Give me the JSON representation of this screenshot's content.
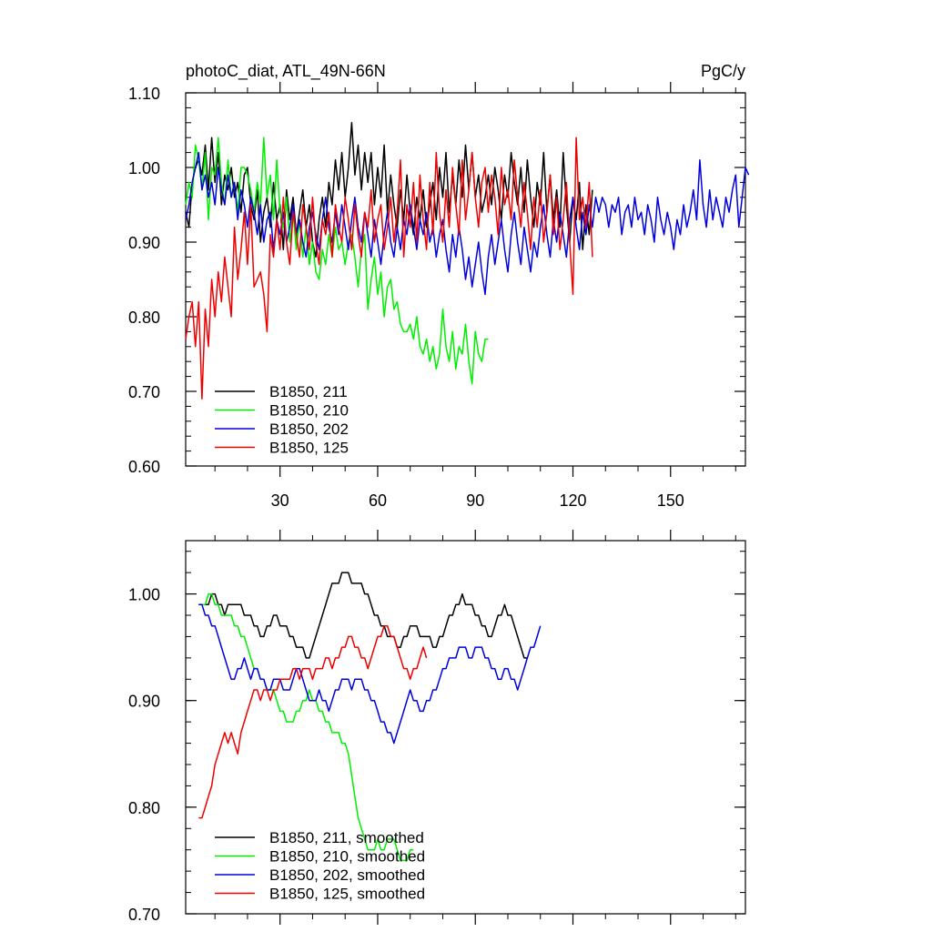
{
  "figure": {
    "title_left": "photoC_diat, ATL_49N-66N",
    "title_right": "PgC/y"
  },
  "colors": {
    "B1850_211": "#000000",
    "B1850_210": "#00ee00",
    "B1850_202": "#0000dd",
    "B1850_125": "#ee0000"
  },
  "chart_data": [
    {
      "type": "line",
      "title": "photoC_diat, ATL_49N-66N",
      "units": "PgC/y",
      "xlabel": "",
      "ylabel": "",
      "xlim": [
        1,
        173
      ],
      "ylim": [
        0.6,
        1.1
      ],
      "x_ticks": [
        30,
        60,
        90,
        120,
        150
      ],
      "x_tick_labels": [
        "30",
        "60",
        "90",
        "120",
        "150"
      ],
      "y_ticks": [
        0.6,
        0.7,
        0.8,
        0.9,
        1.0,
        1.1
      ],
      "y_tick_labels": [
        "0.60",
        "0.70",
        "0.80",
        "0.90",
        "1.00",
        "1.10"
      ],
      "legend_position": "bottom-left",
      "legend": [
        "B1850, 211",
        "B1850, 210",
        "B1850, 202",
        "B1850, 125"
      ],
      "series": [
        {
          "name": "B1850, 211",
          "color": "#000000",
          "x_start": 1,
          "values": [
            0.94,
            0.92,
            0.98,
            1.0,
            1.01,
            0.99,
            1.03,
            0.97,
            1.04,
            0.98,
            1.02,
            0.95,
            0.99,
            0.97,
            1.0,
            0.96,
            0.98,
            0.94,
            0.99,
            1.0,
            0.95,
            0.93,
            0.97,
            0.9,
            0.94,
            0.96,
            0.92,
            0.98,
            0.93,
            0.95,
            0.89,
            0.97,
            0.93,
            0.96,
            0.91,
            0.94,
            0.97,
            0.92,
            0.95,
            0.9,
            0.88,
            0.93,
            0.96,
            0.92,
            0.98,
            0.95,
            1.01,
            0.97,
            1.02,
            0.96,
            1.0,
            1.06,
            0.99,
            1.03,
            0.97,
            1.02,
            0.98,
            1.02,
            0.95,
            1.0,
            0.96,
            1.03,
            0.94,
            0.99,
            0.95,
            0.92,
            0.97,
            0.93,
            0.99,
            0.94,
            0.91,
            0.96,
            0.93,
            0.97,
            0.92,
            0.95,
            0.98,
            0.93,
            1.0,
            0.96,
            1.02,
            0.94,
            0.99,
            0.95,
            1.01,
            0.96,
            1.03,
            0.97,
            1.02,
            0.96,
            0.99,
            0.94,
            0.96,
            0.99,
            0.95,
            1.0,
            0.97,
            0.93,
            0.99,
            0.96,
            1.02,
            0.98,
            0.95,
            1.0,
            0.94,
            1.01,
            0.96,
            0.92,
            0.98,
            0.95,
            1.02,
            0.94,
            0.99,
            0.93,
            0.97,
            0.92,
            1.02,
            0.95,
            0.9,
            0.96,
            0.93,
            0.98,
            0.89,
            0.95,
            0.91,
            0.97
          ]
        },
        {
          "name": "B1850, 210",
          "color": "#00ee00",
          "x_start": 1,
          "values": [
            0.95,
            0.98,
            0.96,
            1.03,
            1.01,
            0.97,
            1.02,
            0.93,
            1.0,
            0.99,
            1.04,
            0.98,
            0.95,
            1.01,
            0.96,
            0.98,
            0.94,
            1.0,
            1.0,
            0.99,
            0.97,
            0.94,
            0.98,
            0.95,
            1.04,
            0.96,
            0.99,
            0.93,
            1.01,
            0.94,
            0.92,
            0.96,
            0.9,
            0.94,
            0.89,
            0.93,
            0.88,
            0.92,
            0.87,
            0.9,
            0.86,
            0.85,
            0.89,
            0.87,
            0.91,
            0.88,
            0.92,
            0.89,
            0.9,
            0.87,
            0.9,
            0.91,
            0.88,
            0.84,
            0.89,
            0.91,
            0.81,
            0.85,
            0.88,
            0.83,
            0.86,
            0.8,
            0.84,
            0.85,
            0.81,
            0.82,
            0.79,
            0.78,
            0.78,
            0.79,
            0.77,
            0.8,
            0.76,
            0.75,
            0.77,
            0.74,
            0.76,
            0.73,
            0.75,
            0.81,
            0.76,
            0.74,
            0.78,
            0.73,
            0.76,
            0.75,
            0.79,
            0.74,
            0.71,
            0.78,
            0.75,
            0.74,
            0.77,
            0.77
          ]
        },
        {
          "name": "B1850, 202",
          "color": "#0000dd",
          "x_start": 1,
          "values": [
            0.93,
            0.95,
            0.98,
            1.0,
            1.02,
            0.97,
            0.99,
            0.96,
            0.98,
            0.95,
            1.0,
            0.97,
            0.95,
            0.99,
            0.96,
            0.98,
            0.93,
            0.97,
            0.95,
            0.92,
            0.96,
            0.94,
            0.91,
            0.95,
            0.9,
            0.93,
            0.94,
            0.89,
            0.93,
            0.91,
            0.94,
            0.9,
            0.92,
            0.95,
            0.91,
            0.93,
            0.9,
            0.88,
            0.92,
            0.94,
            0.91,
            0.89,
            0.93,
            0.96,
            0.92,
            0.9,
            0.94,
            0.91,
            0.95,
            0.92,
            0.89,
            0.93,
            0.96,
            0.92,
            0.9,
            0.94,
            0.91,
            0.88,
            0.93,
            0.9,
            0.87,
            0.91,
            0.94,
            0.9,
            0.88,
            0.92,
            0.89,
            0.93,
            0.91,
            0.95,
            0.92,
            0.89,
            0.93,
            0.91,
            0.94,
            0.9,
            0.92,
            0.88,
            0.91,
            0.93,
            0.89,
            0.86,
            0.91,
            0.88,
            0.92,
            0.89,
            0.85,
            0.88,
            0.84,
            0.87,
            0.9,
            0.86,
            0.83,
            0.88,
            0.91,
            0.87,
            0.9,
            0.93,
            0.89,
            0.86,
            0.91,
            0.94,
            0.9,
            0.87,
            0.92,
            0.89,
            0.86,
            0.9,
            0.88,
            0.92,
            0.95,
            0.91,
            0.88,
            0.93,
            0.9,
            0.94,
            0.91,
            0.88,
            0.93,
            0.96,
            0.92,
            0.89,
            0.94,
            0.91,
            0.95,
            0.92,
            0.96,
            0.94,
            0.96,
            0.95,
            0.92,
            0.95,
            0.94,
            0.96,
            0.91,
            0.94,
            0.95,
            0.92,
            0.96,
            0.93,
            0.94,
            0.91,
            0.95,
            0.93,
            0.9,
            0.96,
            0.93,
            0.91,
            0.94,
            0.92,
            0.89,
            0.93,
            0.91,
            0.95,
            0.92,
            0.94,
            0.97,
            0.93,
            1.01,
            0.95,
            0.92,
            0.97,
            0.93,
            0.96,
            0.94,
            0.92,
            0.96,
            0.94,
            0.97,
            0.99,
            0.92,
            0.96,
            1.0,
            0.99
          ]
        },
        {
          "name": "B1850, 125",
          "color": "#ee0000",
          "x_start": 1,
          "values": [
            0.77,
            0.8,
            0.82,
            0.76,
            0.82,
            0.69,
            0.81,
            0.76,
            0.85,
            0.8,
            0.86,
            0.82,
            0.88,
            0.84,
            0.8,
            0.92,
            0.85,
            0.89,
            0.94,
            0.87,
            0.95,
            0.84,
            0.85,
            0.86,
            0.83,
            0.78,
            0.91,
            0.88,
            0.93,
            0.89,
            0.96,
            0.9,
            0.87,
            0.94,
            0.91,
            0.88,
            0.95,
            0.92,
            0.89,
            0.96,
            0.9,
            0.87,
            0.93,
            0.91,
            0.94,
            0.88,
            0.95,
            0.92,
            0.9,
            0.96,
            0.93,
            0.89,
            0.95,
            0.91,
            0.88,
            0.94,
            0.92,
            0.97,
            0.9,
            0.93,
            0.95,
            0.89,
            0.92,
            0.96,
            0.9,
            0.94,
            1.01,
            0.88,
            0.95,
            0.92,
            0.98,
            0.9,
            0.99,
            0.93,
            0.89,
            0.98,
            0.91,
            1.02,
            0.94,
            0.9,
            0.97,
            0.92,
            1.0,
            0.95,
            0.91,
            1.01,
            0.93,
            0.97,
            1.02,
            0.96,
            0.92,
            0.98,
            1.0,
            0.94,
            0.99,
            0.96,
            0.91,
            1.0,
            0.95,
            0.97,
            0.93,
            1.01,
            0.96,
            0.92,
            0.98,
            0.94,
            0.89,
            0.96,
            0.92,
            0.97,
            0.9,
            0.94,
            0.99,
            0.91,
            0.96,
            0.89,
            0.93,
            0.98,
            0.9,
            0.83,
            1.04,
            0.93,
            0.96,
            0.92,
            0.98,
            0.88
          ]
        }
      ]
    },
    {
      "type": "line",
      "title": "",
      "xlabel": "",
      "ylabel": "",
      "xlim": [
        1,
        173
      ],
      "ylim": [
        0.7,
        1.05
      ],
      "x_ticks": [
        30,
        60,
        90,
        120,
        150
      ],
      "x_tick_labels": [],
      "y_ticks": [
        0.7,
        0.8,
        0.9,
        1.0
      ],
      "y_tick_labels": [
        "0.70",
        "0.80",
        "0.90",
        "1.00"
      ],
      "legend_position": "bottom-left",
      "legend": [
        "B1850, 211, smoothed",
        "B1850, 210, smoothed",
        "B1850, 202, smoothed",
        "B1850, 125, smoothed"
      ],
      "series": [
        {
          "name": "B1850, 211, smoothed",
          "color": "#000000",
          "x_start": 5,
          "values": [
            0.99,
            0.99,
            0.99,
            0.99,
            1.0,
            1.0,
            0.99,
            0.99,
            0.98,
            0.99,
            0.99,
            0.99,
            0.99,
            0.99,
            0.98,
            0.98,
            0.98,
            0.97,
            0.97,
            0.96,
            0.96,
            0.97,
            0.97,
            0.98,
            0.98,
            0.97,
            0.97,
            0.97,
            0.96,
            0.96,
            0.95,
            0.95,
            0.95,
            0.94,
            0.94,
            0.95,
            0.96,
            0.97,
            0.98,
            0.99,
            1.0,
            1.01,
            1.01,
            1.01,
            1.02,
            1.02,
            1.02,
            1.01,
            1.01,
            1.01,
            1.01,
            1.0,
            1.0,
            0.99,
            0.98,
            0.98,
            0.97,
            0.97,
            0.96,
            0.96,
            0.96,
            0.95,
            0.95,
            0.96,
            0.96,
            0.97,
            0.97,
            0.97,
            0.96,
            0.96,
            0.96,
            0.96,
            0.95,
            0.95,
            0.96,
            0.96,
            0.97,
            0.98,
            0.98,
            0.99,
            0.99,
            1.0,
            0.99,
            0.99,
            0.99,
            0.98,
            0.98,
            0.97,
            0.97,
            0.96,
            0.96,
            0.97,
            0.98,
            0.98,
            0.99,
            0.98,
            0.98,
            0.97,
            0.96,
            0.95,
            0.94,
            0.94
          ]
        },
        {
          "name": "B1850, 210, smoothed",
          "color": "#00ee00",
          "x_start": 5,
          "values": [
            0.99,
            0.99,
            0.99,
            1.0,
            1.0,
            0.99,
            0.99,
            0.98,
            0.98,
            0.98,
            0.98,
            0.97,
            0.97,
            0.96,
            0.96,
            0.95,
            0.94,
            0.93,
            0.93,
            0.92,
            0.92,
            0.91,
            0.91,
            0.91,
            0.9,
            0.89,
            0.89,
            0.88,
            0.88,
            0.88,
            0.89,
            0.89,
            0.9,
            0.9,
            0.91,
            0.9,
            0.9,
            0.89,
            0.89,
            0.88,
            0.88,
            0.87,
            0.87,
            0.87,
            0.86,
            0.86,
            0.85,
            0.83,
            0.81,
            0.79,
            0.78,
            0.77,
            0.76,
            0.76,
            0.76,
            0.77,
            0.76,
            0.76,
            0.77,
            0.77,
            0.77,
            0.76,
            0.75,
            0.75,
            0.75,
            0.76,
            0.76
          ]
        },
        {
          "name": "B1850, 202, smoothed",
          "color": "#0000dd",
          "x_start": 5,
          "values": [
            0.99,
            0.99,
            0.98,
            0.98,
            0.97,
            0.97,
            0.96,
            0.95,
            0.94,
            0.93,
            0.92,
            0.92,
            0.93,
            0.93,
            0.94,
            0.93,
            0.92,
            0.93,
            0.93,
            0.92,
            0.92,
            0.91,
            0.91,
            0.92,
            0.92,
            0.92,
            0.91,
            0.91,
            0.91,
            0.92,
            0.93,
            0.93,
            0.92,
            0.91,
            0.9,
            0.9,
            0.9,
            0.91,
            0.9,
            0.9,
            0.89,
            0.9,
            0.91,
            0.91,
            0.92,
            0.92,
            0.92,
            0.91,
            0.92,
            0.92,
            0.92,
            0.91,
            0.91,
            0.9,
            0.9,
            0.89,
            0.88,
            0.88,
            0.87,
            0.87,
            0.86,
            0.87,
            0.88,
            0.89,
            0.9,
            0.91,
            0.9,
            0.9,
            0.89,
            0.89,
            0.9,
            0.9,
            0.91,
            0.91,
            0.92,
            0.93,
            0.93,
            0.94,
            0.94,
            0.94,
            0.95,
            0.95,
            0.95,
            0.94,
            0.94,
            0.95,
            0.95,
            0.95,
            0.94,
            0.94,
            0.93,
            0.93,
            0.92,
            0.92,
            0.93,
            0.93,
            0.92,
            0.92,
            0.91,
            0.92,
            0.93,
            0.94,
            0.95,
            0.95,
            0.96,
            0.97
          ]
        },
        {
          "name": "B1850, 125, smoothed",
          "color": "#ee0000",
          "x_start": 5,
          "values": [
            0.79,
            0.79,
            0.8,
            0.81,
            0.82,
            0.84,
            0.85,
            0.86,
            0.87,
            0.86,
            0.87,
            0.86,
            0.85,
            0.87,
            0.88,
            0.89,
            0.9,
            0.91,
            0.91,
            0.9,
            0.91,
            0.91,
            0.9,
            0.91,
            0.91,
            0.92,
            0.92,
            0.92,
            0.92,
            0.93,
            0.93,
            0.92,
            0.93,
            0.93,
            0.93,
            0.92,
            0.93,
            0.93,
            0.93,
            0.94,
            0.94,
            0.93,
            0.94,
            0.94,
            0.95,
            0.95,
            0.96,
            0.96,
            0.95,
            0.95,
            0.94,
            0.94,
            0.93,
            0.94,
            0.95,
            0.96,
            0.96,
            0.97,
            0.97,
            0.96,
            0.96,
            0.95,
            0.94,
            0.93,
            0.93,
            0.92,
            0.93,
            0.93,
            0.94,
            0.95,
            0.94
          ]
        }
      ]
    }
  ]
}
